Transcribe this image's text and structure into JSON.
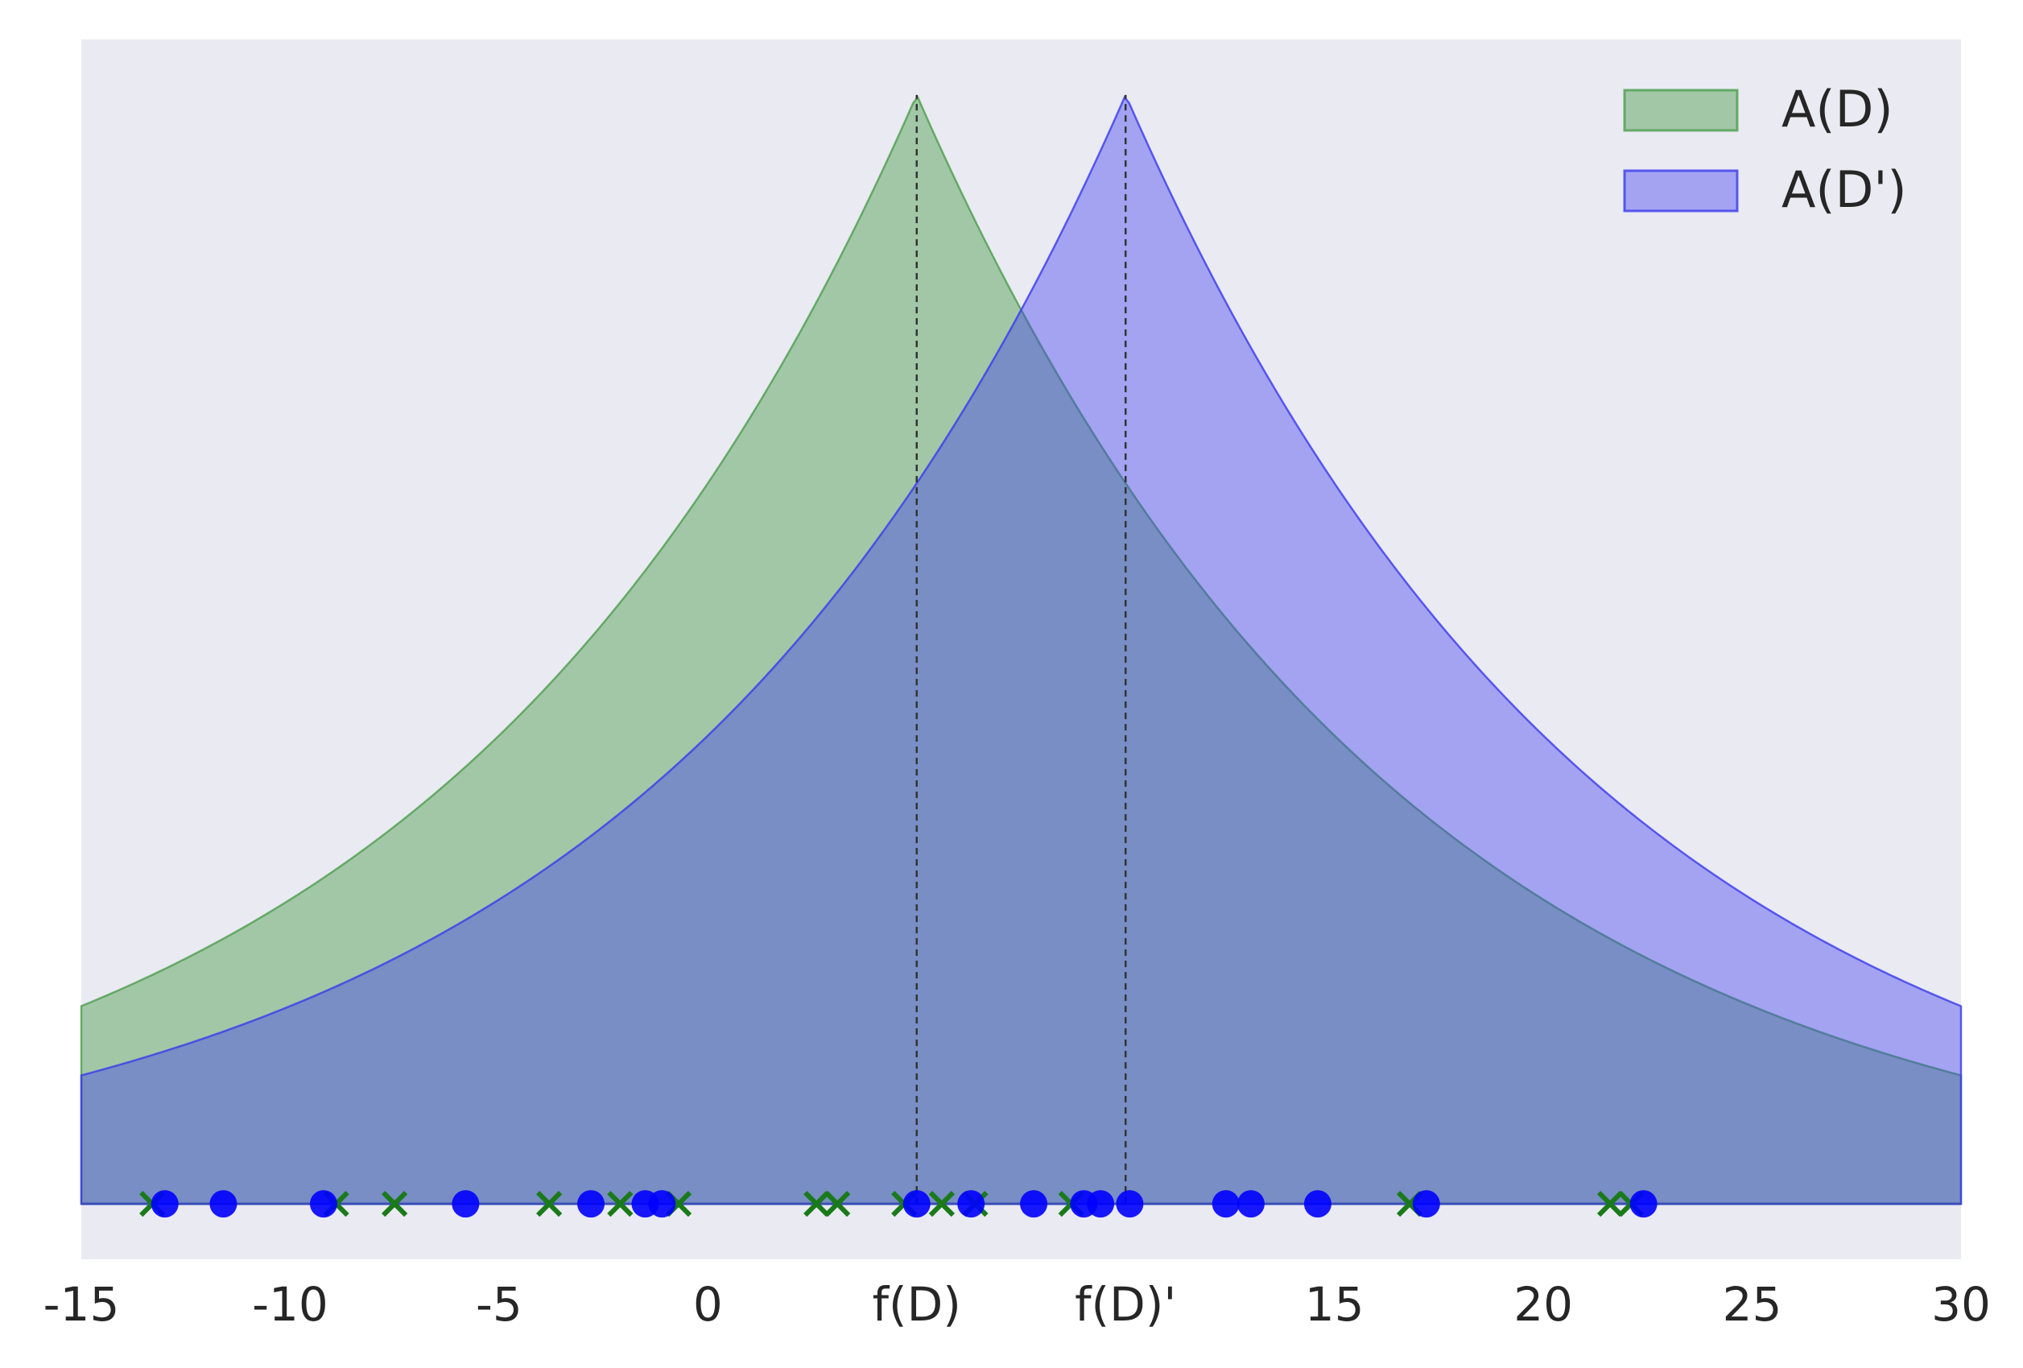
{
  "chart_data": {
    "type": "area",
    "title": "",
    "xlabel": "",
    "ylabel": "",
    "xlim": [
      -15,
      30
    ],
    "ylim": [
      -0.05,
      1.05
    ],
    "grid": false,
    "legend_position": "top-right",
    "x_ticks": [
      {
        "value": -15,
        "label": "-15"
      },
      {
        "value": -10,
        "label": "-10"
      },
      {
        "value": -5,
        "label": "-5"
      },
      {
        "value": 0,
        "label": "0"
      },
      {
        "value": 5,
        "label": "f(D)"
      },
      {
        "value": 10,
        "label": "f(D)'"
      },
      {
        "value": 15,
        "label": "15"
      },
      {
        "value": 20,
        "label": "20"
      },
      {
        "value": 25,
        "label": "25"
      },
      {
        "value": 30,
        "label": "30"
      }
    ],
    "series": [
      {
        "name": "A(D)",
        "kind": "laplace-density",
        "center": 5,
        "scale": 11.6,
        "peak": 1.0,
        "color": "#4c9e4c",
        "alpha": 0.45
      },
      {
        "name": "A(D')",
        "kind": "laplace-density",
        "center": 10,
        "scale": 11.6,
        "peak": 1.0,
        "color": "#3a3aef",
        "alpha": 0.4
      }
    ],
    "reference_lines": [
      5,
      10
    ],
    "sample_points_D": [
      -13.3,
      -8.9,
      -7.5,
      -3.8,
      -2.1,
      -0.7,
      2.6,
      3.1,
      4.7,
      5.6,
      6.4,
      8.7,
      16.8,
      21.6,
      22.1
    ],
    "sample_points_D_prime": [
      -13,
      -11.6,
      -9.2,
      -5.8,
      -2.8,
      -1.5,
      -1.1,
      5,
      6.3,
      7.8,
      9,
      9.4,
      10.1,
      12.4,
      13,
      14.6,
      17.2,
      22.4
    ]
  },
  "colors": {
    "background": "#eaeaf2",
    "marker_D": "#1a7a1a",
    "marker_D_prime": "#0000ff",
    "reference_line": "#333333"
  }
}
